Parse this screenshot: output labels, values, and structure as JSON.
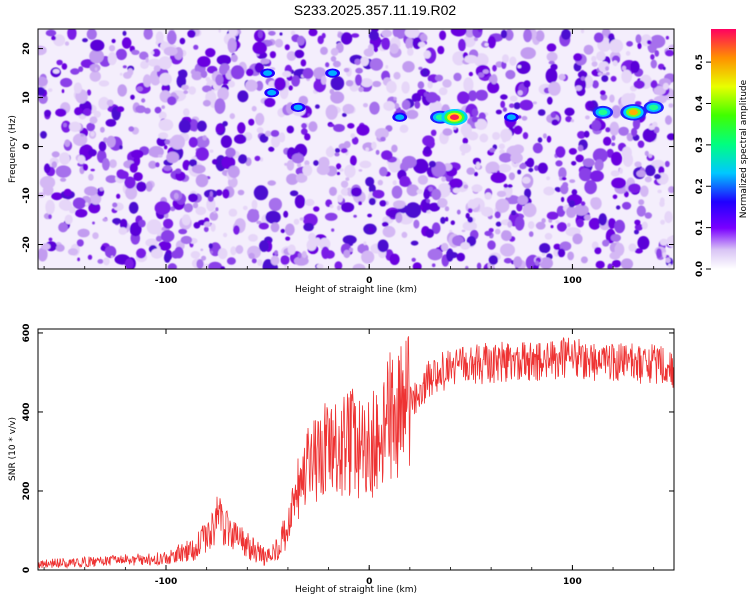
{
  "title": "S233.2025.357.11.19.R02",
  "chart_data": [
    {
      "type": "heatmap",
      "xlabel": "Height of straight line (km)",
      "ylabel": "Frequency (Hz)",
      "xlim": [
        -163,
        150
      ],
      "ylim": [
        -25,
        24
      ],
      "x_ticks": [
        "-100",
        "0",
        "100"
      ],
      "y_ticks": [
        "-20",
        "-10",
        "0",
        "10",
        "20"
      ],
      "colorbar": {
        "label": "Normalized spectral amplitude",
        "range": [
          0,
          0.58
        ],
        "ticks": [
          "0.0",
          "0.1",
          "0.2",
          "0.3",
          "0.4",
          "0.5"
        ]
      },
      "peak_ridge": [
        {
          "x": -48,
          "y": 11,
          "amp": 0.24
        },
        {
          "x": -50,
          "y": 15,
          "amp": 0.22
        },
        {
          "x": -35,
          "y": 8,
          "amp": 0.18
        },
        {
          "x": -18,
          "y": 15,
          "amp": 0.16
        },
        {
          "x": 15,
          "y": 6,
          "amp": 0.22
        },
        {
          "x": 35,
          "y": 6,
          "amp": 0.28
        },
        {
          "x": 42,
          "y": 6,
          "amp": 0.55
        },
        {
          "x": 70,
          "y": 6,
          "amp": 0.25
        },
        {
          "x": 115,
          "y": 7,
          "amp": 0.3
        },
        {
          "x": 130,
          "y": 7,
          "amp": 0.5
        },
        {
          "x": 140,
          "y": 8,
          "amp": 0.26
        }
      ]
    },
    {
      "type": "line",
      "xlabel": "Height of straight line (km)",
      "ylabel": "SNR (10 * v/v)",
      "xlim": [
        -163,
        150
      ],
      "ylim": [
        0,
        610
      ],
      "x_ticks": [
        "-100",
        "0",
        "100"
      ],
      "y_ticks": [
        "0",
        "200",
        "400",
        "600"
      ],
      "color": "#ee3333",
      "series": [
        {
          "x": [
            -163,
            -140,
            -120,
            -100,
            -90,
            -80,
            -75,
            -70,
            -60,
            -50,
            -45,
            -40,
            -35,
            -30,
            -25,
            -20,
            -15,
            -10,
            -5,
            0,
            5,
            10,
            15,
            20,
            25,
            30,
            40,
            50,
            60,
            70,
            80,
            90,
            100,
            110,
            120,
            130,
            140,
            150
          ],
          "y": [
            15,
            20,
            25,
            30,
            45,
            80,
            130,
            110,
            60,
            30,
            60,
            100,
            200,
            250,
            280,
            300,
            290,
            330,
            300,
            300,
            340,
            380,
            400,
            420,
            450,
            490,
            510,
            520,
            525,
            530,
            525,
            530,
            540,
            530,
            520,
            525,
            520,
            510
          ]
        }
      ]
    }
  ]
}
